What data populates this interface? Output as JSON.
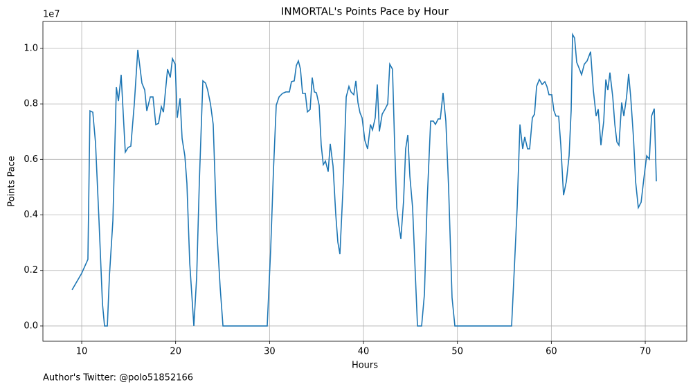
{
  "chart_data": {
    "type": "line",
    "title": "INMORTAL's Points Pace by Hour",
    "x_label": "Hours",
    "y_label": "Points Pace",
    "y_offset_label": "1e7",
    "footnote": "Author's Twitter: @polo51852166",
    "color": "#1f77b4",
    "grid": true,
    "xlim": [
      5.87,
      74.42
    ],
    "ylim": [
      -0.055,
      1.097
    ],
    "xticks": [
      10,
      20,
      30,
      40,
      50,
      60,
      70
    ],
    "yticks": [
      {
        "value": 0,
        "label": "0.0"
      },
      0.2,
      0.4,
      0.6,
      0.8,
      {
        "value": 1,
        "label": "1.0"
      }
    ],
    "x": [
      8.97,
      10,
      10.66,
      10.88,
      11.18,
      11.47,
      11.84,
      12.21,
      12.43,
      12.73,
      12.95,
      13.32,
      13.69,
      13.91,
      14.2,
      14.64,
      14.94,
      15.23,
      15.6,
      15.97,
      16.41,
      16.71,
      16.93,
      17.3,
      17.59,
      17.89,
      18.18,
      18.48,
      18.7,
      19.14,
      19.43,
      19.66,
      19.95,
      20.17,
      20.47,
      20.69,
      20.98,
      21.2,
      21.5,
      21.94,
      22.24,
      22.53,
      22.9,
      23.19,
      23.41,
      23.71,
      24.0,
      24.37,
      24.74,
      25.04,
      29.75,
      30.12,
      30.42,
      30.71,
      31.01,
      31.38,
      31.74,
      32.11,
      32.33,
      32.63,
      32.85,
      33.07,
      33.29,
      33.51,
      33.81,
      34.03,
      34.32,
      34.54,
      34.77,
      34.99,
      35.28,
      35.5,
      35.72,
      35.95,
      36.24,
      36.46,
      36.76,
      37.05,
      37.27,
      37.49,
      37.86,
      38.16,
      38.45,
      38.67,
      38.97,
      39.19,
      39.41,
      39.63,
      39.85,
      40.15,
      40.44,
      40.74,
      40.96,
      41.25,
      41.47,
      41.69,
      41.99,
      42.28,
      42.58,
      42.8,
      43.09,
      43.32,
      43.54,
      43.76,
      43.98,
      44.27,
      44.49,
      44.72,
      44.94,
      45.23,
      45.53,
      45.75,
      46.19,
      46.49,
      46.78,
      47.15,
      47.44,
      47.66,
      47.96,
      48.18,
      48.47,
      48.77,
      49.06,
      49.43,
      49.73,
      55.77,
      56.07,
      56.36,
      56.66,
      56.95,
      57.17,
      57.47,
      57.69,
      57.98,
      58.21,
      58.43,
      58.72,
      59.02,
      59.31,
      59.53,
      59.75,
      60.05,
      60.27,
      60.49,
      60.78,
      61.01,
      61.3,
      61.6,
      61.89,
      62.11,
      62.26,
      62.48,
      62.7,
      63.0,
      63.22,
      63.51,
      63.81,
      64.18,
      64.47,
      64.77,
      64.99,
      65.28,
      65.58,
      65.8,
      66.02,
      66.24,
      66.54,
      66.76,
      66.98,
      67.2,
      67.49,
      67.72,
      68.01,
      68.23,
      68.45,
      68.75,
      68.97,
      69.26,
      69.56,
      69.85,
      70.15,
      70.44,
      70.67,
      70.96,
      71.18
    ],
    "values": [
      0.13,
      0.19,
      0.24,
      0.775,
      0.77,
      0.66,
      0.38,
      0.08,
      0,
      0,
      0.18,
      0.38,
      0.86,
      0.81,
      0.905,
      0.626,
      0.643,
      0.648,
      0.8,
      0.995,
      0.875,
      0.85,
      0.775,
      0.825,
      0.825,
      0.725,
      0.73,
      0.79,
      0.77,
      0.925,
      0.895,
      0.963,
      0.943,
      0.75,
      0.82,
      0.675,
      0.613,
      0.514,
      0.227,
      0,
      0.177,
      0.526,
      0.883,
      0.875,
      0.85,
      0.8,
      0.726,
      0.352,
      0.14,
      0,
      0,
      0.277,
      0.564,
      0.795,
      0.825,
      0.838,
      0.843,
      0.843,
      0.88,
      0.883,
      0.938,
      0.955,
      0.925,
      0.838,
      0.838,
      0.771,
      0.78,
      0.895,
      0.843,
      0.84,
      0.795,
      0.651,
      0.581,
      0.594,
      0.556,
      0.656,
      0.576,
      0.401,
      0.302,
      0.259,
      0.526,
      0.825,
      0.863,
      0.843,
      0.833,
      0.883,
      0.805,
      0.768,
      0.75,
      0.668,
      0.638,
      0.726,
      0.706,
      0.75,
      0.87,
      0.701,
      0.763,
      0.78,
      0.8,
      0.943,
      0.925,
      0.651,
      0.426,
      0.364,
      0.314,
      0.451,
      0.638,
      0.688,
      0.539,
      0.426,
      0.177,
      0,
      0,
      0.115,
      0.451,
      0.738,
      0.738,
      0.726,
      0.746,
      0.746,
      0.84,
      0.738,
      0.501,
      0.102,
      0,
      0,
      0.214,
      0.426,
      0.726,
      0.638,
      0.681,
      0.638,
      0.638,
      0.75,
      0.763,
      0.863,
      0.888,
      0.87,
      0.88,
      0.863,
      0.833,
      0.833,
      0.776,
      0.756,
      0.756,
      0.651,
      0.471,
      0.521,
      0.613,
      0.776,
      1.05,
      1.037,
      0.95,
      0.925,
      0.905,
      0.943,
      0.955,
      0.988,
      0.85,
      0.756,
      0.781,
      0.651,
      0.738,
      0.888,
      0.85,
      0.913,
      0.825,
      0.726,
      0.663,
      0.651,
      0.805,
      0.756,
      0.825,
      0.908,
      0.825,
      0.676,
      0.521,
      0.426,
      0.446,
      0.531,
      0.613,
      0.601,
      0.756,
      0.783,
      0.521
    ]
  }
}
